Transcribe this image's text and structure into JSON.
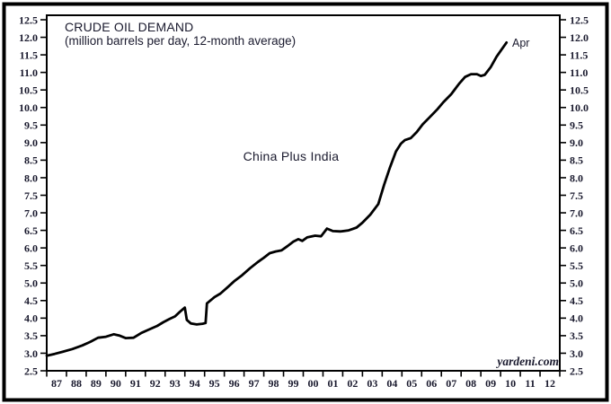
{
  "window": {
    "background": "#ffffff",
    "outer_border_color": "#000000"
  },
  "chart_data": {
    "type": "line",
    "title": "CRUDE OIL DEMAND",
    "subtitle": "(million barrels per day, 12-month average)",
    "series_label": "China Plus India",
    "end_point_label": "Apr",
    "end_point": {
      "period": "Apr 2010",
      "value": 11.85
    },
    "watermark": "yardeni.com",
    "xlabel": "",
    "ylabel": "",
    "grid": false,
    "legend": "none",
    "line_color": "#000000",
    "text_color": "#1a1a2e",
    "xlim": [
      1987,
      2013
    ],
    "ylim": [
      2.5,
      12.5
    ],
    "y_ticks": [
      12.5,
      12.0,
      11.5,
      11.0,
      10.5,
      10.0,
      9.5,
      9.0,
      8.5,
      8.0,
      7.5,
      7.0,
      6.5,
      6.0,
      5.5,
      5.0,
      4.5,
      4.0,
      3.5,
      3.0,
      2.5
    ],
    "y_tick_labels": [
      "12.5",
      "12.0",
      "11.5",
      "11.0",
      "10.5",
      "10.0",
      "9.5",
      "9.0",
      "8.5",
      "8.0",
      "7.5",
      "7.0",
      "6.5",
      "6.0",
      "5.5",
      "5.0",
      "4.5",
      "4.0",
      "3.5",
      "3.0",
      "2.5"
    ],
    "x_ticks": [
      1987,
      1988,
      1989,
      1990,
      1991,
      1992,
      1993,
      1994,
      1995,
      1996,
      1997,
      1998,
      1999,
      2000,
      2001,
      2002,
      2003,
      2004,
      2005,
      2006,
      2007,
      2008,
      2009,
      2010,
      2011,
      2012,
      2013
    ],
    "x_tick_labels": [
      "87",
      "88",
      "89",
      "90",
      "91",
      "92",
      "93",
      "94",
      "95",
      "96",
      "97",
      "98",
      "99",
      "00",
      "01",
      "02",
      "03",
      "04",
      "05",
      "06",
      "07",
      "08",
      "09",
      "10",
      "11",
      "12"
    ],
    "x": [
      1987.0,
      1987.4,
      1987.8,
      1988.3,
      1988.8,
      1989.2,
      1989.6,
      1990.0,
      1990.4,
      1990.7,
      1991.0,
      1991.4,
      1991.8,
      1992.2,
      1992.6,
      1992.9,
      1993.2,
      1993.5,
      1993.75,
      1994.0,
      1994.1,
      1994.3,
      1994.6,
      1994.9,
      1995.05,
      1995.12,
      1995.5,
      1995.8,
      1996.15,
      1996.5,
      1996.9,
      1997.3,
      1997.7,
      1998.0,
      1998.3,
      1998.6,
      1998.9,
      1999.2,
      1999.5,
      1999.75,
      1999.95,
      2000.2,
      2000.6,
      2000.9,
      2001.2,
      2001.5,
      2001.9,
      2002.3,
      2002.7,
      2003.0,
      2003.4,
      2003.8,
      2004.1,
      2004.4,
      2004.7,
      2004.95,
      2005.15,
      2005.45,
      2005.75,
      2006.05,
      2006.4,
      2006.8,
      2007.1,
      2007.5,
      2007.9,
      2008.2,
      2008.5,
      2008.8,
      2009.0,
      2009.2,
      2009.5,
      2009.8,
      2010.05,
      2010.3
    ],
    "y": [
      2.93,
      2.98,
      3.04,
      3.12,
      3.22,
      3.32,
      3.44,
      3.47,
      3.54,
      3.5,
      3.43,
      3.44,
      3.58,
      3.68,
      3.78,
      3.88,
      3.97,
      4.05,
      4.18,
      4.3,
      3.95,
      3.85,
      3.82,
      3.84,
      3.86,
      4.42,
      4.6,
      4.7,
      4.87,
      5.05,
      5.22,
      5.42,
      5.6,
      5.72,
      5.85,
      5.9,
      5.93,
      6.05,
      6.18,
      6.25,
      6.2,
      6.3,
      6.35,
      6.33,
      6.55,
      6.48,
      6.47,
      6.5,
      6.58,
      6.72,
      6.95,
      7.25,
      7.8,
      8.3,
      8.75,
      8.97,
      9.07,
      9.13,
      9.3,
      9.52,
      9.72,
      9.95,
      10.15,
      10.38,
      10.68,
      10.87,
      10.95,
      10.95,
      10.9,
      10.93,
      11.15,
      11.45,
      11.65,
      11.85
    ]
  }
}
